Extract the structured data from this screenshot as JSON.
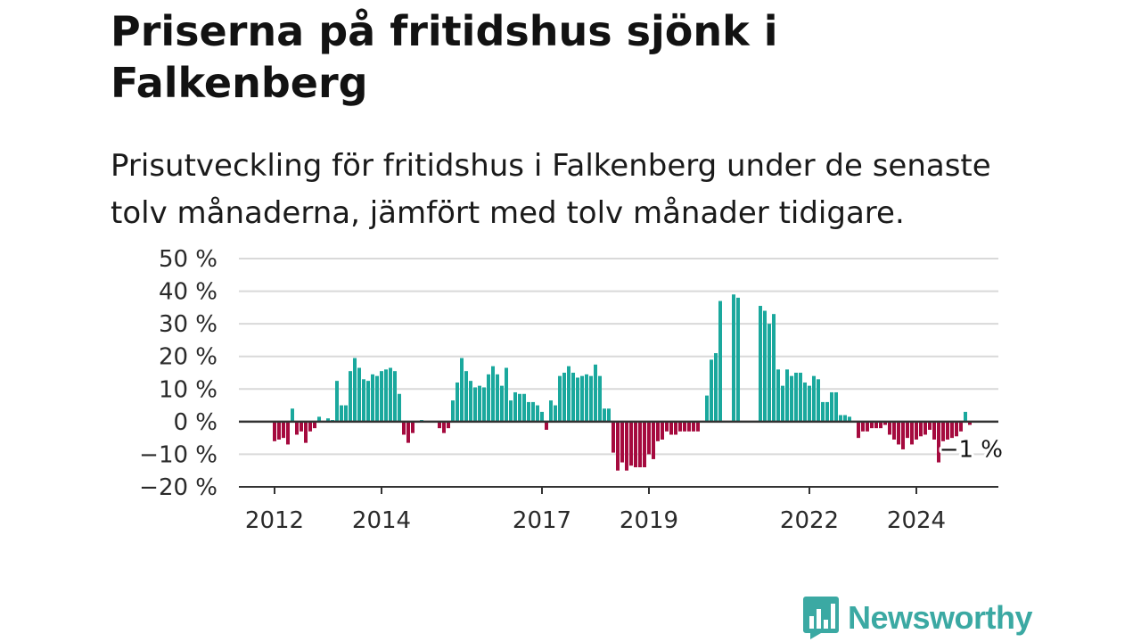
{
  "title": "Priserna på fritidshus sjönk i Falkenberg",
  "subtitle": "Prisutveckling för fritidshus i Falkenberg under de senaste tolv månaderna, jämfört med tolv månader tidigare.",
  "brand": {
    "name": "Newsworthy",
    "color": "#3ba9a3"
  },
  "colors": {
    "positive": "#1aa89d",
    "negative": "#a50a3e",
    "grid": "#d9d9d9",
    "axis": "#333333"
  },
  "chart_data": {
    "type": "bar",
    "title": "Priserna på fritidshus sjönk i Falkenberg",
    "xlabel": "",
    "ylabel": "",
    "ylim": [
      -20,
      50
    ],
    "yticks": [
      {
        "value": 50,
        "label": "50 %"
      },
      {
        "value": 40,
        "label": "40 %"
      },
      {
        "value": 30,
        "label": "30 %"
      },
      {
        "value": 20,
        "label": "20 %"
      },
      {
        "value": 10,
        "label": "10 %"
      },
      {
        "value": 0,
        "label": "0 %"
      },
      {
        "value": -10,
        "label": "−10 %"
      },
      {
        "value": -20,
        "label": "−20 %"
      }
    ],
    "x_start": "2012-01",
    "xticks": [
      {
        "month": "2012-01",
        "label": "2012"
      },
      {
        "month": "2014-01",
        "label": "2014"
      },
      {
        "month": "2017-01",
        "label": "2017"
      },
      {
        "month": "2019-01",
        "label": "2019"
      },
      {
        "month": "2022-01",
        "label": "2022"
      },
      {
        "month": "2024-01",
        "label": "2024"
      }
    ],
    "values": [
      -6,
      -5.5,
      -5,
      -7,
      4,
      -4,
      -3,
      -6.5,
      -3,
      -2,
      1.5,
      0,
      1,
      0.5,
      12.5,
      5,
      5,
      15.5,
      19.5,
      16.5,
      13,
      12.5,
      14.5,
      14,
      15.5,
      16,
      16.5,
      15.5,
      8.5,
      -4,
      -6.5,
      -3.5,
      0,
      0.5,
      0,
      0,
      0,
      -2,
      -3.5,
      -2,
      6.5,
      12,
      19.5,
      15.5,
      12.5,
      10.5,
      11,
      10.5,
      14.5,
      17,
      14.5,
      11,
      16.5,
      6.5,
      9,
      8.5,
      8.5,
      6,
      6,
      5,
      3,
      -2.5,
      6.5,
      5,
      14,
      15,
      17,
      15,
      13.5,
      14,
      14.5,
      14,
      17.5,
      14,
      4,
      4,
      -9.5,
      -15,
      -12.5,
      -15,
      -13.5,
      -14,
      -14,
      -14,
      -10,
      -11.5,
      -6,
      -5.5,
      -3,
      -4,
      -4,
      -3,
      -3,
      -3,
      -3,
      -3,
      0,
      8,
      19,
      21,
      37,
      0,
      0,
      39,
      38,
      0,
      0,
      0,
      0,
      35.5,
      34,
      30,
      33,
      16,
      11,
      16,
      14,
      15,
      15,
      12,
      11,
      14,
      13,
      6,
      6,
      9,
      9,
      2,
      2,
      1.5,
      0,
      -5,
      -3,
      -3,
      -2,
      -2,
      -2,
      -1,
      -4,
      -5.5,
      -7,
      -8.5,
      -5,
      -7,
      -5.5,
      -4.5,
      -4,
      -2.5,
      -5.5,
      -12.5,
      -6,
      -5.5,
      -5,
      -4.5,
      -3,
      3,
      -1
    ],
    "annotations": [
      {
        "label": "−1 %",
        "month": "2025-01",
        "value": -1
      }
    ]
  }
}
